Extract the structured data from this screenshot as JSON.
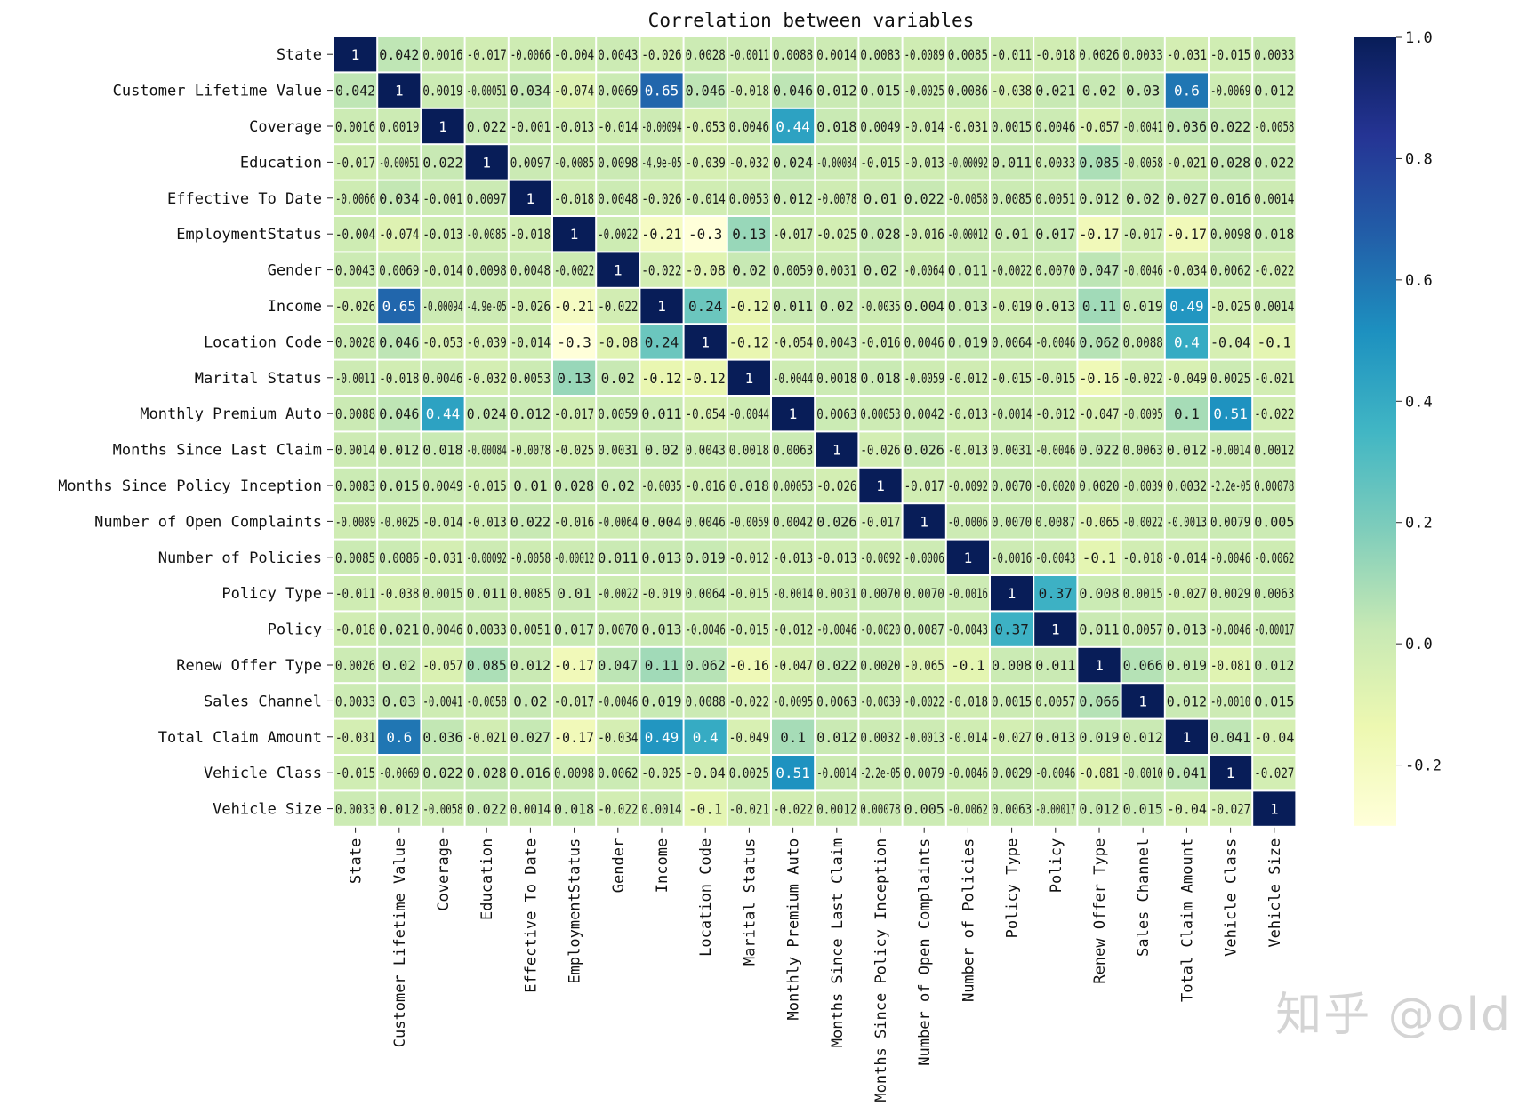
{
  "chart_data": {
    "type": "heatmap",
    "title": "Correlation between variables",
    "labels": [
      "State",
      "Customer Lifetime Value",
      "Coverage",
      "Education",
      "Effective To Date",
      "EmploymentStatus",
      "Gender",
      "Income",
      "Location Code",
      "Marital Status",
      "Monthly Premium Auto",
      "Months Since Last Claim",
      "Months Since Policy Inception",
      "Number of Open Complaints",
      "Number of Policies",
      "Policy Type",
      "Policy",
      "Renew Offer Type",
      "Sales Channel",
      "Total Claim Amount",
      "Vehicle Class",
      "Vehicle Size"
    ],
    "cell_text": [
      [
        "1",
        "0.042",
        "0.0016",
        "-0.017",
        "-0.0066",
        "-0.004",
        "0.0043",
        "-0.026",
        "0.0028",
        "-0.0011",
        "0.0088",
        "0.0014",
        "0.0083",
        "-0.0089",
        "0.0085",
        "-0.011",
        "-0.018",
        "0.0026",
        "0.0033",
        "-0.031",
        "-0.015",
        "0.0033"
      ],
      [
        "0.042",
        "1",
        "0.0019",
        "-0.00051",
        "0.034",
        "-0.074",
        "0.0069",
        "0.65",
        "0.046",
        "-0.018",
        "0.046",
        "0.012",
        "0.015",
        "-0.0025",
        "0.0086",
        "-0.038",
        "0.021",
        "0.02",
        "0.03",
        "0.6",
        "-0.0069",
        "0.012"
      ],
      [
        "0.0016",
        "0.0019",
        "1",
        "0.022",
        "-0.001",
        "-0.013",
        "-0.014",
        "-0.00094",
        "-0.053",
        "0.0046",
        "0.44",
        "0.018",
        "0.0049",
        "-0.014",
        "-0.031",
        "0.0015",
        "0.0046",
        "-0.057",
        "-0.0041",
        "0.036",
        "0.022",
        "-0.0058"
      ],
      [
        "-0.017",
        "-0.00051",
        "0.022",
        "1",
        "0.0097",
        "-0.0085",
        "0.0098",
        "-4.9e-05",
        "-0.039",
        "-0.032",
        "0.024",
        "-0.00084",
        "-0.015",
        "-0.013",
        "-0.00092",
        "0.011",
        "0.0033",
        "0.085",
        "-0.0058",
        "-0.021",
        "0.028",
        "0.022"
      ],
      [
        "-0.0066",
        "0.034",
        "-0.001",
        "0.0097",
        "1",
        "-0.018",
        "0.0048",
        "-0.026",
        "-0.014",
        "0.0053",
        "0.012",
        "-0.0078",
        "0.01",
        "0.022",
        "-0.0058",
        "0.0085",
        "0.0051",
        "0.012",
        "0.02",
        "0.027",
        "0.016",
        "0.0014"
      ],
      [
        "-0.004",
        "-0.074",
        "-0.013",
        "-0.0085",
        "-0.018",
        "1",
        "-0.0022",
        "-0.21",
        "-0.3",
        "0.13",
        "-0.017",
        "-0.025",
        "0.028",
        "-0.016",
        "-0.00012",
        "0.01",
        "0.017",
        "-0.17",
        "-0.017",
        "-0.17",
        "0.0098",
        "0.018"
      ],
      [
        "0.0043",
        "0.0069",
        "-0.014",
        "0.0098",
        "0.0048",
        "-0.0022",
        "1",
        "-0.022",
        "-0.08",
        "0.02",
        "0.0059",
        "0.0031",
        "0.02",
        "-0.0064",
        "0.011",
        "-0.0022",
        "0.0070",
        "0.047",
        "-0.0046",
        "-0.034",
        "0.0062",
        "-0.022"
      ],
      [
        "-0.026",
        "0.65",
        "-0.00094",
        "-4.9e-05",
        "-0.026",
        "-0.21",
        "-0.022",
        "1",
        "0.24",
        "-0.12",
        "0.011",
        "0.02",
        "-0.0035",
        "0.004",
        "0.013",
        "-0.019",
        "0.013",
        "0.11",
        "0.019",
        "0.49",
        "-0.025",
        "0.0014"
      ],
      [
        "0.0028",
        "0.046",
        "-0.053",
        "-0.039",
        "-0.014",
        "-0.3",
        "-0.08",
        "0.24",
        "1",
        "-0.12",
        "-0.054",
        "0.0043",
        "-0.016",
        "0.0046",
        "0.019",
        "0.0064",
        "-0.0046",
        "0.062",
        "0.0088",
        "0.4",
        "-0.04",
        "-0.1"
      ],
      [
        "-0.0011",
        "-0.018",
        "0.0046",
        "-0.032",
        "0.0053",
        "0.13",
        "0.02",
        "-0.12",
        "-0.12",
        "1",
        "-0.0044",
        "0.0018",
        "0.018",
        "-0.0059",
        "-0.012",
        "-0.015",
        "-0.015",
        "-0.16",
        "-0.022",
        "-0.049",
        "0.0025",
        "-0.021"
      ],
      [
        "0.0088",
        "0.046",
        "0.44",
        "0.024",
        "0.012",
        "-0.017",
        "0.0059",
        "0.011",
        "-0.054",
        "-0.0044",
        "1",
        "0.0063",
        "0.00053",
        "0.0042",
        "-0.013",
        "-0.0014",
        "-0.012",
        "-0.047",
        "-0.0095",
        "0.1",
        "0.51",
        "-0.022"
      ],
      [
        "0.0014",
        "0.012",
        "0.018",
        "-0.00084",
        "-0.0078",
        "-0.025",
        "0.0031",
        "0.02",
        "0.0043",
        "0.0018",
        "0.0063",
        "1",
        "-0.026",
        "0.026",
        "-0.013",
        "0.0031",
        "-0.0046",
        "0.022",
        "0.0063",
        "0.012",
        "-0.0014",
        "0.0012"
      ],
      [
        "0.0083",
        "0.015",
        "0.0049",
        "-0.015",
        "0.01",
        "0.028",
        "0.02",
        "-0.0035",
        "-0.016",
        "0.018",
        "0.00053",
        "-0.026",
        "1",
        "-0.017",
        "-0.0092",
        "0.0070",
        "-0.0020",
        "0.0020",
        "-0.0039",
        "0.0032",
        "-2.2e-05",
        "0.00078"
      ],
      [
        "-0.0089",
        "-0.0025",
        "-0.014",
        "-0.013",
        "0.022",
        "-0.016",
        "-0.0064",
        "0.004",
        "0.0046",
        "-0.0059",
        "0.0042",
        "0.026",
        "-0.017",
        "1",
        "-0.0006",
        "0.0070",
        "0.0087",
        "-0.065",
        "-0.0022",
        "-0.0013",
        "0.0079",
        "0.005"
      ],
      [
        "0.0085",
        "0.0086",
        "-0.031",
        "-0.00092",
        "-0.0058",
        "-0.00012",
        "0.011",
        "0.013",
        "0.019",
        "-0.012",
        "-0.013",
        "-0.013",
        "-0.0092",
        "-0.0006",
        "1",
        "-0.0016",
        "-0.0043",
        "-0.1",
        "-0.018",
        "-0.014",
        "-0.0046",
        "-0.0062"
      ],
      [
        "-0.011",
        "-0.038",
        "0.0015",
        "0.011",
        "0.0085",
        "0.01",
        "-0.0022",
        "-0.019",
        "0.0064",
        "-0.015",
        "-0.0014",
        "0.0031",
        "0.0070",
        "0.0070",
        "-0.0016",
        "1",
        "0.37",
        "0.008",
        "0.0015",
        "-0.027",
        "0.0029",
        "0.0063"
      ],
      [
        "-0.018",
        "0.021",
        "0.0046",
        "0.0033",
        "0.0051",
        "0.017",
        "0.0070",
        "0.013",
        "-0.0046",
        "-0.015",
        "-0.012",
        "-0.0046",
        "-0.0020",
        "0.0087",
        "-0.0043",
        "0.37",
        "1",
        "0.011",
        "0.0057",
        "0.013",
        "-0.0046",
        "-0.00017"
      ],
      [
        "0.0026",
        "0.02",
        "-0.057",
        "0.085",
        "0.012",
        "-0.17",
        "0.047",
        "0.11",
        "0.062",
        "-0.16",
        "-0.047",
        "0.022",
        "0.0020",
        "-0.065",
        "-0.1",
        "0.008",
        "0.011",
        "1",
        "0.066",
        "0.019",
        "-0.081",
        "0.012"
      ],
      [
        "0.0033",
        "0.03",
        "-0.0041",
        "-0.0058",
        "0.02",
        "-0.017",
        "-0.0046",
        "0.019",
        "0.0088",
        "-0.022",
        "-0.0095",
        "0.0063",
        "-0.0039",
        "-0.0022",
        "-0.018",
        "0.0015",
        "0.0057",
        "0.066",
        "1",
        "0.012",
        "-0.0010",
        "0.015"
      ],
      [
        "-0.031",
        "0.6",
        "0.036",
        "-0.021",
        "0.027",
        "-0.17",
        "-0.034",
        "0.49",
        "0.4",
        "-0.049",
        "0.1",
        "0.012",
        "0.0032",
        "-0.0013",
        "-0.014",
        "-0.027",
        "0.013",
        "0.019",
        "0.012",
        "1",
        "0.041",
        "-0.04"
      ],
      [
        "-0.015",
        "-0.0069",
        "0.022",
        "0.028",
        "0.016",
        "0.0098",
        "0.0062",
        "-0.025",
        "-0.04",
        "0.0025",
        "0.51",
        "-0.0014",
        "-2.2e-05",
        "0.0079",
        "-0.0046",
        "0.0029",
        "-0.0046",
        "-0.081",
        "-0.0010",
        "0.041",
        "1",
        "-0.027"
      ],
      [
        "0.0033",
        "0.012",
        "-0.0058",
        "0.022",
        "0.0014",
        "0.018",
        "-0.022",
        "0.0014",
        "-0.1",
        "-0.021",
        "-0.022",
        "0.0012",
        "0.00078",
        "0.005",
        "-0.0062",
        "0.0063",
        "-0.00017",
        "0.012",
        "0.015",
        "-0.04",
        "-0.027",
        "1"
      ]
    ],
    "vmin": -0.3,
    "vmax": 1.0,
    "colormap": [
      "#ffffd9",
      "#edf8b1",
      "#c7e9b4",
      "#7fcdbb",
      "#41b6c4",
      "#1d91c0",
      "#225ea8",
      "#253494",
      "#081d58"
    ],
    "colorbar_ticks": [
      {
        "value": 1.0,
        "label": "1.0"
      },
      {
        "value": 0.8,
        "label": "0.8"
      },
      {
        "value": 0.6,
        "label": "0.6"
      },
      {
        "value": 0.4,
        "label": "0.4"
      },
      {
        "value": 0.2,
        "label": "0.2"
      },
      {
        "value": 0.0,
        "label": "0.0"
      },
      {
        "value": -0.2,
        "label": "-0.2"
      }
    ]
  },
  "watermark": "知乎 @old"
}
